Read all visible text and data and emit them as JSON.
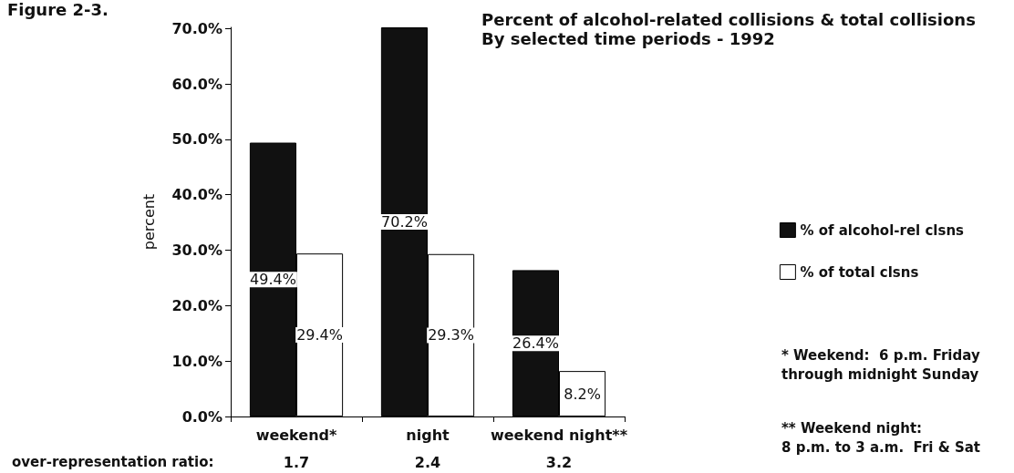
{
  "chart_data": {
    "type": "bar",
    "title": "Percent of alcohol-related collisions & total collisions",
    "subtitle": "By selected time periods - 1992",
    "ylabel": "percent",
    "categories": [
      "weekend*",
      "night",
      "weekend night**"
    ],
    "series": [
      {
        "name": "% of alcohol-rel clsns",
        "color": "#111111",
        "values": [
          49.4,
          70.2,
          26.4
        ],
        "value_labels": [
          "49.4%",
          "70.2%",
          "26.4%"
        ]
      },
      {
        "name": "% of total clsns",
        "color": "#ffffff",
        "values": [
          29.4,
          29.3,
          8.2
        ],
        "value_labels": [
          "29.4%",
          "29.3%",
          "8.2%"
        ]
      }
    ],
    "ylim": [
      0,
      70.2
    ],
    "yticks": [
      {
        "value": 0,
        "label": "0.0%"
      },
      {
        "value": 10,
        "label": "10.0%"
      },
      {
        "value": 20,
        "label": "20.0%"
      },
      {
        "value": 30,
        "label": "30.0%"
      },
      {
        "value": 40,
        "label": "40.0%"
      },
      {
        "value": 50,
        "label": "50.0%"
      },
      {
        "value": 60,
        "label": "60.0%"
      },
      {
        "value": 70,
        "label": "70.0%"
      }
    ],
    "grid": false,
    "legend": "right",
    "annotations": [
      "Figure 2-3.",
      "over-representation ratio:",
      "1.7",
      "2.4",
      "3.2",
      "* Weekend:  6 p.m. Friday\nthrough midnight Sunday",
      "** Weekend night:\n8 p.m. to 3 a.m.  Fri & Sat"
    ]
  }
}
